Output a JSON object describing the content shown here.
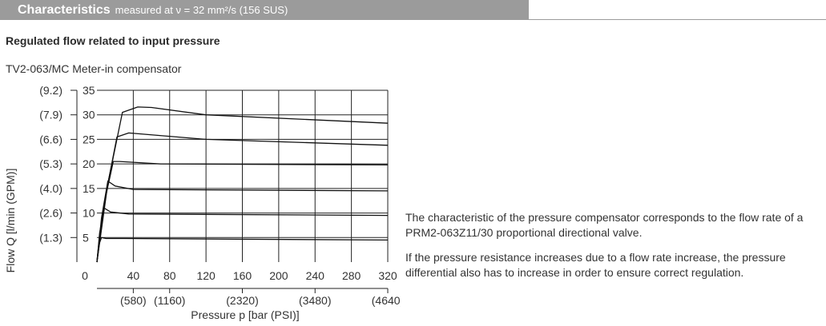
{
  "header": {
    "title": "Characteristics",
    "subtitle": "measured at ν = 32 mm²/s (156 SUS)"
  },
  "section_title": "Regulated flow related to input pressure",
  "description": [
    "The characteristic of the pressure compensator corresponds to the flow rate of a PRM2-063Z11/30 proportional directional valve.",
    "If the pressure resistance increases due to a flow rate increase, the pressure differential also has to increase in order to ensure correct regulation."
  ],
  "chart_data": {
    "type": "line",
    "title": "TV2-063/MC Meter-in compensator",
    "xlabel": "Pressure p [bar (PSI)]",
    "ylabel": "Flow Q [l/min (GPM)]",
    "xlim": [
      0,
      320
    ],
    "ylim": [
      0,
      35
    ],
    "x_ticks": [
      0,
      40,
      80,
      120,
      160,
      200,
      240,
      280,
      320
    ],
    "x_tick_labels": [
      "0",
      "40",
      "80",
      "120",
      "160",
      "200",
      "240",
      "280",
      "320"
    ],
    "x_secondary_ticks": [
      {
        "x": 40,
        "label": "(580)"
      },
      {
        "x": 80,
        "label": "(1160)"
      },
      {
        "x": 160,
        "label": "(2320)"
      },
      {
        "x": 240,
        "label": "(3480)"
      },
      {
        "x": 320,
        "label": "(4640)"
      }
    ],
    "y_ticks": [
      5,
      10,
      15,
      20,
      25,
      30,
      35
    ],
    "y_tick_labels": [
      "5",
      "10",
      "15",
      "20",
      "25",
      "30",
      "35"
    ],
    "y_secondary_ticks": [
      {
        "y": 5,
        "label": "(1.3)"
      },
      {
        "y": 10,
        "label": "(2.6)"
      },
      {
        "y": 15,
        "label": "(4.0)"
      },
      {
        "y": 20,
        "label": "(5.3)"
      },
      {
        "y": 25,
        "label": "(6.6)"
      },
      {
        "y": 30,
        "label": "(7.9)"
      },
      {
        "y": 35,
        "label": "(9.2)"
      }
    ],
    "grid": true,
    "series": [
      {
        "x": [
          0,
          2,
          5,
          10,
          30,
          320
        ],
        "y": [
          0,
          3.5,
          5.0,
          4.8,
          4.8,
          4.5
        ]
      },
      {
        "x": [
          0,
          3,
          8,
          15,
          35,
          320
        ],
        "y": [
          0,
          6,
          11.0,
          10.2,
          9.8,
          9.5
        ]
      },
      {
        "x": [
          0,
          5,
          12,
          20,
          40,
          320
        ],
        "y": [
          0,
          9,
          16.5,
          15.5,
          14.8,
          14.5
        ]
      },
      {
        "x": [
          0,
          8,
          18,
          25,
          70,
          320
        ],
        "y": [
          0,
          12,
          20.5,
          20.5,
          20.0,
          19.8
        ]
      },
      {
        "x": [
          0,
          10,
          22,
          35,
          120,
          320
        ],
        "y": [
          0,
          14,
          25.5,
          26.3,
          25.0,
          23.8
        ]
      },
      {
        "x": [
          0,
          12,
          28,
          45,
          60,
          120,
          320
        ],
        "y": [
          0,
          16,
          30.5,
          31.6,
          31.5,
          30.0,
          28.3
        ]
      }
    ]
  }
}
